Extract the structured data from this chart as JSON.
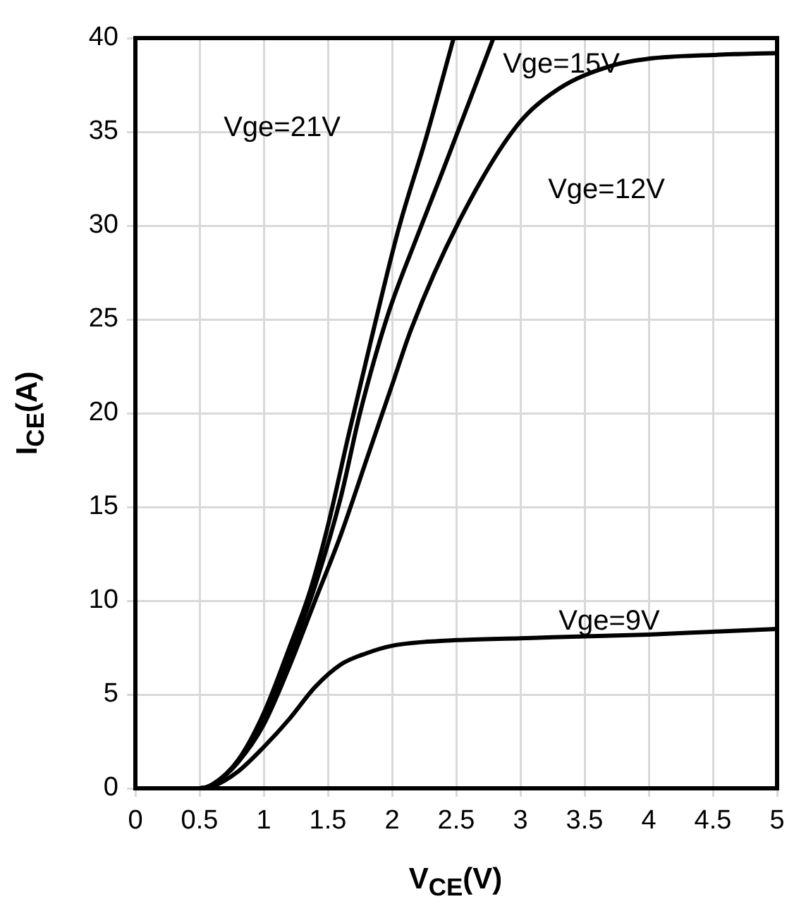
{
  "chart_data": {
    "type": "line",
    "xlabel": "V$_{CE}$(V)",
    "ylabel": "I$_{CE}$(A)",
    "xlim": [
      0,
      5
    ],
    "xticks": [
      0,
      0.5,
      1,
      1.5,
      2,
      2.5,
      3,
      3.5,
      4,
      4.5,
      5
    ],
    "ylim": [
      0,
      40
    ],
    "yticks": [
      0,
      5,
      10,
      15,
      20,
      25,
      30,
      35,
      40
    ],
    "grid": true,
    "marker": "none",
    "line_style": "solid",
    "series": [
      {
        "name": "Vge=21V",
        "color": "#000000",
        "x": [
          0,
          0.5,
          0.6,
          0.8,
          1,
          1.2,
          1.36,
          1.5,
          1.66,
          1.84,
          2.05,
          2.27,
          2.48
        ],
        "values": [
          0,
          0,
          0.2,
          1.5,
          4,
          7.5,
          10.5,
          14,
          18.8,
          24,
          29.8,
          34.8,
          40
        ]
      },
      {
        "name": "Vge=15V",
        "color": "#000000",
        "x": [
          0,
          0.5,
          0.6,
          0.8,
          1,
          1.2,
          1.4,
          1.6,
          1.75,
          1.97,
          2.2,
          2.4,
          2.79
        ],
        "values": [
          0,
          0,
          0.2,
          1.4,
          3.6,
          7,
          10.8,
          15.5,
          20,
          25.3,
          29.5,
          33,
          40
        ]
      },
      {
        "name": "Vge=12V",
        "color": "#000000",
        "x": [
          0,
          0.5,
          0.6,
          0.8,
          1,
          1.2,
          1.4,
          1.6,
          1.8,
          2,
          2.15,
          2.52,
          2.97,
          3.3,
          3.7,
          4,
          4.5,
          5
        ],
        "values": [
          0,
          0,
          0.2,
          1.4,
          3.4,
          6.5,
          10,
          13.5,
          17.5,
          21.5,
          24.5,
          30.2,
          35.3,
          37.3,
          38.5,
          38.9,
          39.1,
          39.2
        ]
      },
      {
        "name": "Vge=9V",
        "color": "#000000",
        "x": [
          0,
          0.5,
          0.6,
          0.8,
          1,
          1.2,
          1.4,
          1.6,
          1.8,
          2,
          2.5,
          3,
          3.5,
          4,
          4.5,
          5
        ],
        "values": [
          0,
          0,
          0.1,
          0.9,
          2.2,
          3.7,
          5.4,
          6.6,
          7.2,
          7.6,
          7.9,
          8,
          8.1,
          8.2,
          8.35,
          8.5
        ]
      }
    ]
  }
}
